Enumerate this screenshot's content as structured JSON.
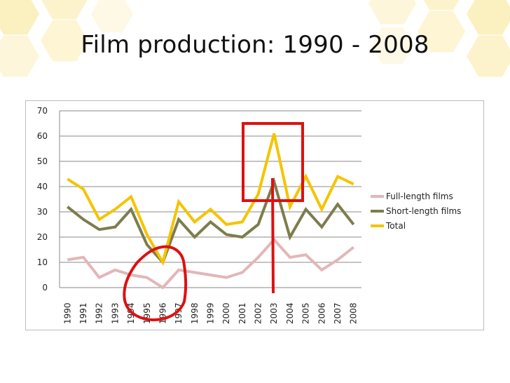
{
  "slide": {
    "title": "Film production: 1990 - 2008"
  },
  "colors": {
    "full_length": "#e3b6b7",
    "short_length": "#7d7d4d",
    "total": "#f5c400",
    "annotation": "#dd1111",
    "honeycomb": "#fbeeb8"
  },
  "chart_data": {
    "type": "line",
    "title": "",
    "xlabel": "",
    "ylabel": "",
    "ylim": [
      0,
      70
    ],
    "yticks": [
      0,
      10,
      20,
      30,
      40,
      50,
      60,
      70
    ],
    "categories": [
      "1990",
      "1991",
      "1992",
      "1993",
      "1994",
      "1995",
      "1996",
      "1997",
      "1998",
      "1999",
      "2000",
      "2001",
      "2002",
      "2003",
      "2004",
      "2005",
      "2006",
      "2007",
      "2008"
    ],
    "series": [
      {
        "name": "Full-length films",
        "color_key": "full_length",
        "values": [
          11,
          12,
          4,
          7,
          5,
          4,
          0,
          7,
          6,
          5,
          4,
          6,
          12,
          19,
          12,
          13,
          7,
          11,
          16
        ]
      },
      {
        "name": "Short-length films",
        "color_key": "short_length",
        "values": [
          32,
          27,
          23,
          24,
          31,
          17,
          10,
          27,
          20,
          26,
          21,
          20,
          25,
          42,
          20,
          31,
          24,
          33,
          25
        ]
      },
      {
        "name": "Total",
        "color_key": "total",
        "values": [
          43,
          39,
          27,
          31,
          36,
          21,
          10,
          34,
          26,
          31,
          25,
          26,
          37,
          61,
          32,
          44,
          31,
          44,
          41
        ]
      }
    ],
    "grid": true,
    "legend": "right"
  }
}
